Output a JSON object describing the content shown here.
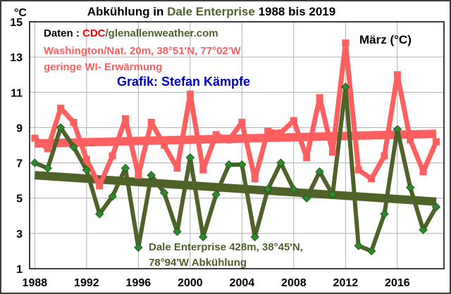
{
  "chart_data": {
    "type": "line",
    "title_parts": [
      {
        "text": "Abkühlung in ",
        "color": "#000000"
      },
      {
        "text": "Dale Enterprise",
        "color": "#4f6228"
      },
      {
        "text": " 1988 bis 2019",
        "color": "#000000"
      }
    ],
    "unit_label": "°C",
    "x": [
      1988,
      1989,
      1990,
      1991,
      1992,
      1993,
      1994,
      1995,
      1996,
      1997,
      1998,
      1999,
      2000,
      2001,
      2002,
      2003,
      2004,
      2005,
      2006,
      2007,
      2008,
      2009,
      2010,
      2011,
      2012,
      2013,
      2014,
      2015,
      2016,
      2017,
      2018,
      2019
    ],
    "xticks": [
      1988,
      1992,
      1996,
      2000,
      2004,
      2008,
      2012,
      2016
    ],
    "xlim": [
      1987.6,
      2019.6
    ],
    "ylim": [
      1,
      15
    ],
    "yticks": [
      1,
      3,
      5,
      7,
      9,
      11,
      13,
      15
    ],
    "grid": true,
    "series": [
      {
        "name": "Washington/Nat. 20m, 38°51'N, 77°02'W",
        "color": "#ff5f5f",
        "marker": "square",
        "values": [
          8.4,
          7.8,
          10.1,
          9.3,
          7.2,
          5.7,
          7.4,
          9.5,
          6.3,
          9.3,
          8.0,
          6.7,
          10.9,
          6.6,
          8.6,
          8.3,
          9.3,
          6.1,
          8.8,
          8.7,
          9.4,
          7.3,
          10.7,
          7.6,
          13.8,
          6.6,
          6.1,
          7.4,
          12.0,
          8.3,
          6.5,
          8.2
        ],
        "trend": [
          8.1,
          8.65
        ]
      },
      {
        "name": "Dale Enterprise 428m, 38°45'N, 78°94'W",
        "color": "#4f6228",
        "marker": "diamond",
        "values": [
          7.0,
          6.7,
          9.0,
          7.9,
          6.6,
          4.1,
          5.1,
          6.7,
          2.2,
          6.3,
          5.3,
          3.1,
          7.3,
          2.8,
          5.2,
          6.9,
          6.9,
          2.8,
          5.5,
          7.0,
          5.5,
          5.0,
          6.5,
          5.2,
          11.3,
          2.3,
          2.0,
          4.1,
          8.9,
          5.6,
          3.2,
          4.5
        ],
        "trend": [
          6.3,
          4.8
        ]
      }
    ]
  },
  "annotations": {
    "source_prefix": "Daten : ",
    "source_cdc": "CDC",
    "source_rest": "/glenallenweather.com",
    "month": "März (°C)",
    "washington_line1": "Washington/Nat. 20m, 38°51'N, 77°02'W",
    "washington_line2": "geringe WI- Erwärmung",
    "grafik": "Grafik: Stefan Kämpfe",
    "dale_line1": "Dale Enterprise 428m, 38°45'N,",
    "dale_line2": "78°94'W  Abkühlung"
  },
  "colors": {
    "frame": "#000000",
    "grid": "#b0b0b0",
    "washington": "#ff5f5f",
    "dale": "#4f6228",
    "grafik": "#0000cc",
    "cdc": "#ff0000"
  }
}
